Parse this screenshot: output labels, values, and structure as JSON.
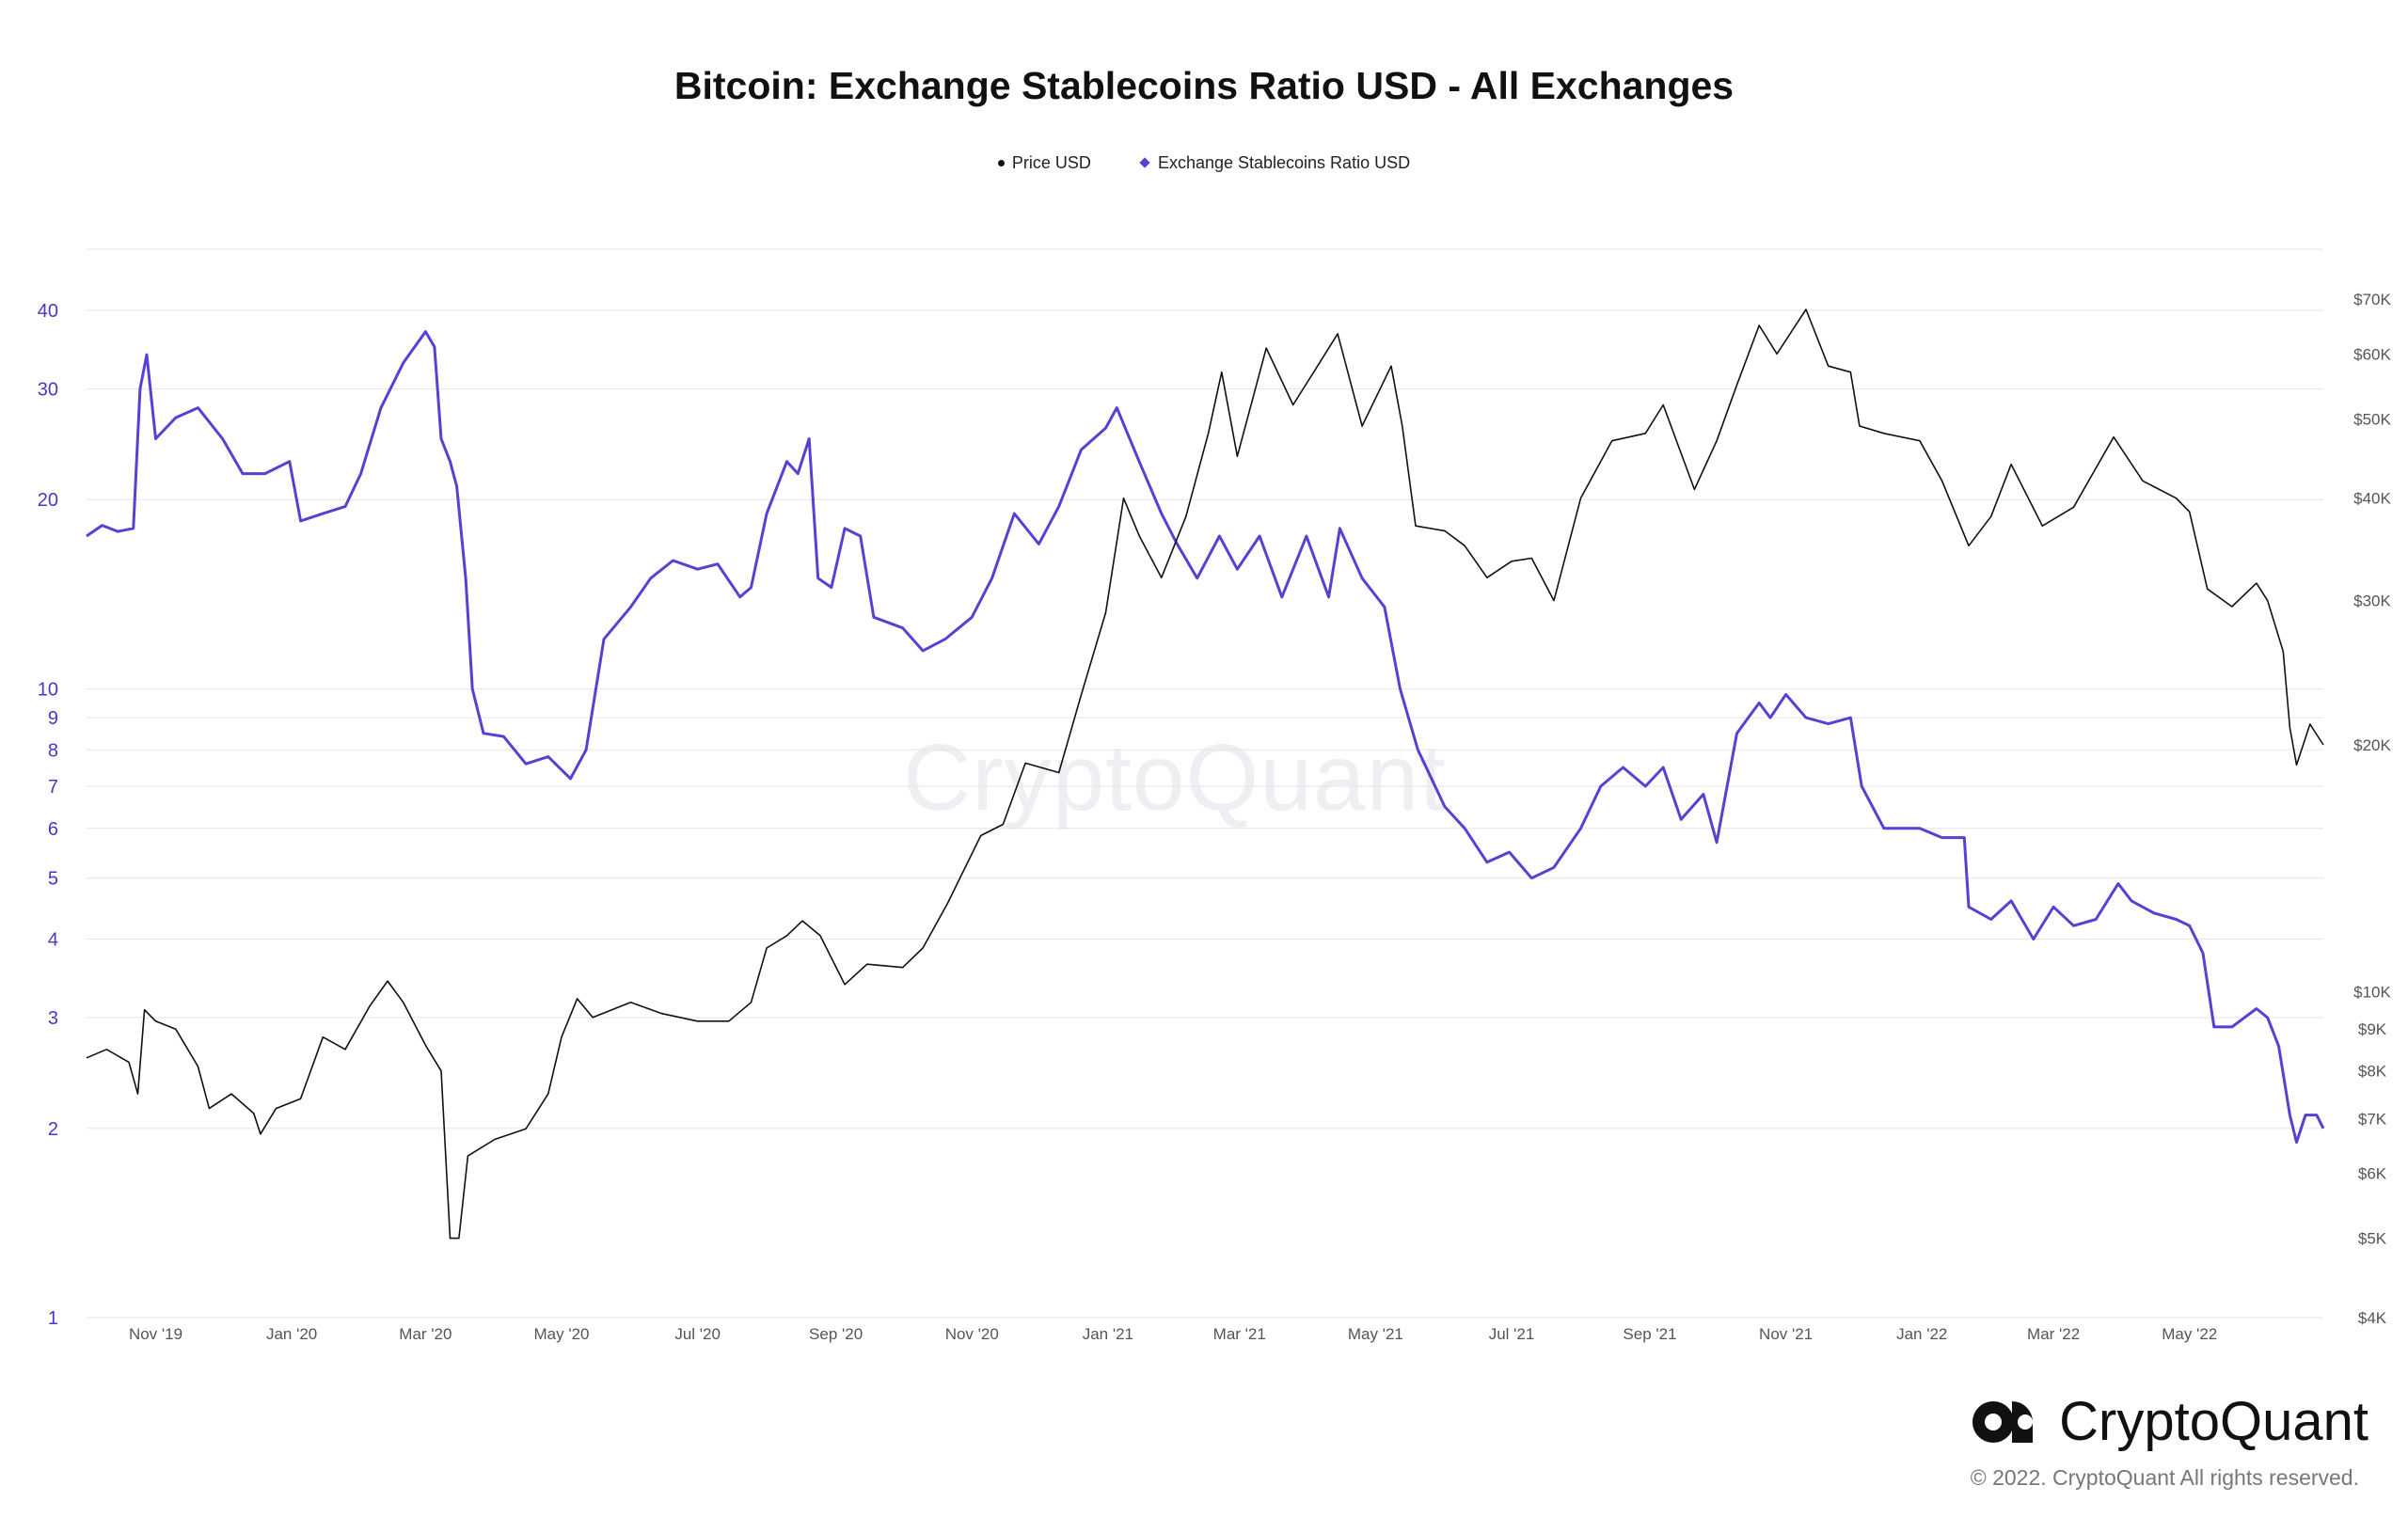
{
  "chart_data": {
    "type": "line",
    "title": "Bitcoin: Exchange Stablecoins Ratio USD - All Exchanges",
    "legend": [
      {
        "name": "Price USD",
        "color": "#111111",
        "marker": "dot"
      },
      {
        "name": "Exchange Stablecoins Ratio USD",
        "color": "#5b3fd2",
        "marker": "diamond"
      }
    ],
    "x_ticks": [
      "Nov '19",
      "Jan '20",
      "Mar '20",
      "May '20",
      "Jul '20",
      "Sep '20",
      "Nov '20",
      "Jan '21",
      "Mar '21",
      "May '21",
      "Jul '21",
      "Sep '21",
      "Nov '21",
      "Jan '22",
      "Mar '22",
      "May '22"
    ],
    "x_range": [
      "2019-10-01",
      "2022-06-30"
    ],
    "y_left": {
      "scale": "log",
      "range": [
        1,
        50
      ],
      "ticks": [
        "40",
        "30",
        "20",
        "10",
        "9",
        "8",
        "7",
        "6",
        "5",
        "4",
        "3",
        "2",
        "1"
      ],
      "tick_values": [
        40,
        30,
        20,
        10,
        9,
        8,
        7,
        6,
        5,
        4,
        3,
        2,
        1
      ]
    },
    "y_right": {
      "scale": "log",
      "range": [
        4000,
        85000
      ],
      "ticks": [
        "$70K",
        "$60K",
        "$50K",
        "$40K",
        "$30K",
        "$20K",
        "$10K",
        "$9K",
        "$8K",
        "$7K",
        "$6K",
        "$5K",
        "$4K"
      ],
      "tick_values": [
        70000,
        60000,
        50000,
        40000,
        30000,
        20000,
        10000,
        9000,
        8000,
        7000,
        6000,
        5000,
        4000
      ]
    },
    "series": [
      {
        "name": "Exchange Stablecoins Ratio USD",
        "axis": "left",
        "color": "#5b3fd2",
        "points": [
          [
            "2019-10-01",
            17.5
          ],
          [
            "2019-10-08",
            18.2
          ],
          [
            "2019-10-15",
            17.8
          ],
          [
            "2019-10-22",
            18.0
          ],
          [
            "2019-10-25",
            30.0
          ],
          [
            "2019-10-28",
            34.0
          ],
          [
            "2019-11-01",
            25.0
          ],
          [
            "2019-11-10",
            27.0
          ],
          [
            "2019-11-20",
            28.0
          ],
          [
            "2019-12-01",
            25.0
          ],
          [
            "2019-12-10",
            22.0
          ],
          [
            "2019-12-20",
            22.0
          ],
          [
            "2019-12-31",
            23.0
          ],
          [
            "2020-01-05",
            18.5
          ],
          [
            "2020-01-15",
            19.0
          ],
          [
            "2020-01-25",
            19.5
          ],
          [
            "2020-02-01",
            22.0
          ],
          [
            "2020-02-10",
            28.0
          ],
          [
            "2020-02-20",
            33.0
          ],
          [
            "2020-03-01",
            37.0
          ],
          [
            "2020-03-05",
            35.0
          ],
          [
            "2020-03-08",
            25.0
          ],
          [
            "2020-03-12",
            23.0
          ],
          [
            "2020-03-15",
            21.0
          ],
          [
            "2020-03-19",
            15.0
          ],
          [
            "2020-03-22",
            10.0
          ],
          [
            "2020-03-27",
            8.5
          ],
          [
            "2020-04-05",
            8.4
          ],
          [
            "2020-04-15",
            7.6
          ],
          [
            "2020-04-25",
            7.8
          ],
          [
            "2020-05-05",
            7.2
          ],
          [
            "2020-05-12",
            8.0
          ],
          [
            "2020-05-20",
            12.0
          ],
          [
            "2020-06-01",
            13.5
          ],
          [
            "2020-06-10",
            15.0
          ],
          [
            "2020-06-20",
            16.0
          ],
          [
            "2020-07-01",
            15.5
          ],
          [
            "2020-07-10",
            15.8
          ],
          [
            "2020-07-20",
            14.0
          ],
          [
            "2020-07-25",
            14.5
          ],
          [
            "2020-08-01",
            19.0
          ],
          [
            "2020-08-10",
            23.0
          ],
          [
            "2020-08-15",
            22.0
          ],
          [
            "2020-08-20",
            25.0
          ],
          [
            "2020-08-24",
            15.0
          ],
          [
            "2020-08-30",
            14.5
          ],
          [
            "2020-09-05",
            18.0
          ],
          [
            "2020-09-12",
            17.5
          ],
          [
            "2020-09-18",
            13.0
          ],
          [
            "2020-10-01",
            12.5
          ],
          [
            "2020-10-10",
            11.5
          ],
          [
            "2020-10-20",
            12.0
          ],
          [
            "2020-11-01",
            13.0
          ],
          [
            "2020-11-10",
            15.0
          ],
          [
            "2020-11-20",
            19.0
          ],
          [
            "2020-12-01",
            17.0
          ],
          [
            "2020-12-10",
            19.5
          ],
          [
            "2020-12-20",
            24.0
          ],
          [
            "2020-12-31",
            26.0
          ],
          [
            "2021-01-05",
            28.0
          ],
          [
            "2021-01-15",
            23.0
          ],
          [
            "2021-01-25",
            19.0
          ],
          [
            "2021-02-01",
            17.0
          ],
          [
            "2021-02-10",
            15.0
          ],
          [
            "2021-02-20",
            17.5
          ],
          [
            "2021-02-28",
            15.5
          ],
          [
            "2021-03-10",
            17.5
          ],
          [
            "2021-03-20",
            14.0
          ],
          [
            "2021-03-31",
            17.5
          ],
          [
            "2021-04-10",
            14.0
          ],
          [
            "2021-04-15",
            18.0
          ],
          [
            "2021-04-25",
            15.0
          ],
          [
            "2021-05-05",
            13.5
          ],
          [
            "2021-05-12",
            10.0
          ],
          [
            "2021-05-20",
            8.0
          ],
          [
            "2021-06-01",
            6.5
          ],
          [
            "2021-06-10",
            6.0
          ],
          [
            "2021-06-20",
            5.3
          ],
          [
            "2021-06-30",
            5.5
          ],
          [
            "2021-07-10",
            5.0
          ],
          [
            "2021-07-20",
            5.2
          ],
          [
            "2021-08-01",
            6.0
          ],
          [
            "2021-08-10",
            7.0
          ],
          [
            "2021-08-20",
            7.5
          ],
          [
            "2021-08-30",
            7.0
          ],
          [
            "2021-09-07",
            7.5
          ],
          [
            "2021-09-15",
            6.2
          ],
          [
            "2021-09-25",
            6.8
          ],
          [
            "2021-10-01",
            5.7
          ],
          [
            "2021-10-10",
            8.5
          ],
          [
            "2021-10-20",
            9.5
          ],
          [
            "2021-10-25",
            9.0
          ],
          [
            "2021-11-01",
            9.8
          ],
          [
            "2021-11-10",
            9.0
          ],
          [
            "2021-11-20",
            8.8
          ],
          [
            "2021-11-30",
            9.0
          ],
          [
            "2021-12-05",
            7.0
          ],
          [
            "2021-12-15",
            6.0
          ],
          [
            "2021-12-31",
            6.0
          ],
          [
            "2022-01-10",
            5.8
          ],
          [
            "2022-01-20",
            5.8
          ],
          [
            "2022-01-22",
            4.5
          ],
          [
            "2022-02-01",
            4.3
          ],
          [
            "2022-02-10",
            4.6
          ],
          [
            "2022-02-20",
            4.0
          ],
          [
            "2022-03-01",
            4.5
          ],
          [
            "2022-03-10",
            4.2
          ],
          [
            "2022-03-20",
            4.3
          ],
          [
            "2022-03-30",
            4.9
          ],
          [
            "2022-04-05",
            4.6
          ],
          [
            "2022-04-15",
            4.4
          ],
          [
            "2022-04-25",
            4.3
          ],
          [
            "2022-05-01",
            4.2
          ],
          [
            "2022-05-07",
            3.8
          ],
          [
            "2022-05-12",
            2.9
          ],
          [
            "2022-05-20",
            2.9
          ],
          [
            "2022-05-31",
            3.1
          ],
          [
            "2022-06-05",
            3.0
          ],
          [
            "2022-06-10",
            2.7
          ],
          [
            "2022-06-15",
            2.1
          ],
          [
            "2022-06-18",
            1.9
          ],
          [
            "2022-06-22",
            2.1
          ],
          [
            "2022-06-27",
            2.1
          ],
          [
            "2022-06-30",
            2.0
          ]
        ]
      },
      {
        "name": "Price USD",
        "axis": "right",
        "color": "#111111",
        "points": [
          [
            "2019-10-01",
            8300
          ],
          [
            "2019-10-10",
            8500
          ],
          [
            "2019-10-20",
            8200
          ],
          [
            "2019-10-24",
            7500
          ],
          [
            "2019-10-27",
            9500
          ],
          [
            "2019-11-01",
            9200
          ],
          [
            "2019-11-10",
            9000
          ],
          [
            "2019-11-20",
            8100
          ],
          [
            "2019-11-25",
            7200
          ],
          [
            "2019-12-05",
            7500
          ],
          [
            "2019-12-15",
            7100
          ],
          [
            "2019-12-18",
            6700
          ],
          [
            "2019-12-25",
            7200
          ],
          [
            "2020-01-05",
            7400
          ],
          [
            "2020-01-15",
            8800
          ],
          [
            "2020-01-25",
            8500
          ],
          [
            "2020-02-05",
            9600
          ],
          [
            "2020-02-13",
            10300
          ],
          [
            "2020-02-20",
            9700
          ],
          [
            "2020-03-01",
            8600
          ],
          [
            "2020-03-08",
            8000
          ],
          [
            "2020-03-12",
            5000
          ],
          [
            "2020-03-16",
            5000
          ],
          [
            "2020-03-20",
            6300
          ],
          [
            "2020-04-01",
            6600
          ],
          [
            "2020-04-15",
            6800
          ],
          [
            "2020-04-25",
            7500
          ],
          [
            "2020-05-01",
            8800
          ],
          [
            "2020-05-08",
            9800
          ],
          [
            "2020-05-15",
            9300
          ],
          [
            "2020-06-01",
            9700
          ],
          [
            "2020-06-15",
            9400
          ],
          [
            "2020-07-01",
            9200
          ],
          [
            "2020-07-15",
            9200
          ],
          [
            "2020-07-25",
            9700
          ],
          [
            "2020-08-01",
            11300
          ],
          [
            "2020-08-10",
            11700
          ],
          [
            "2020-08-17",
            12200
          ],
          [
            "2020-08-25",
            11700
          ],
          [
            "2020-09-05",
            10200
          ],
          [
            "2020-09-15",
            10800
          ],
          [
            "2020-10-01",
            10700
          ],
          [
            "2020-10-10",
            11300
          ],
          [
            "2020-10-21",
            12800
          ],
          [
            "2020-11-05",
            15500
          ],
          [
            "2020-11-15",
            16000
          ],
          [
            "2020-11-25",
            19000
          ],
          [
            "2020-12-10",
            18500
          ],
          [
            "2020-12-20",
            23000
          ],
          [
            "2020-12-31",
            29000
          ],
          [
            "2021-01-08",
            40000
          ],
          [
            "2021-01-15",
            36000
          ],
          [
            "2021-01-25",
            32000
          ],
          [
            "2021-02-05",
            38000
          ],
          [
            "2021-02-15",
            48000
          ],
          [
            "2021-02-21",
            57000
          ],
          [
            "2021-02-28",
            45000
          ],
          [
            "2021-03-13",
            61000
          ],
          [
            "2021-03-25",
            52000
          ],
          [
            "2021-04-05",
            58000
          ],
          [
            "2021-04-14",
            63500
          ],
          [
            "2021-04-25",
            49000
          ],
          [
            "2021-05-08",
            58000
          ],
          [
            "2021-05-13",
            49000
          ],
          [
            "2021-05-19",
            37000
          ],
          [
            "2021-06-01",
            36500
          ],
          [
            "2021-06-10",
            35000
          ],
          [
            "2021-06-20",
            32000
          ],
          [
            "2021-07-01",
            33500
          ],
          [
            "2021-07-10",
            33800
          ],
          [
            "2021-07-20",
            30000
          ],
          [
            "2021-08-01",
            40000
          ],
          [
            "2021-08-15",
            47000
          ],
          [
            "2021-08-30",
            48000
          ],
          [
            "2021-09-07",
            52000
          ],
          [
            "2021-09-21",
            41000
          ],
          [
            "2021-10-01",
            47000
          ],
          [
            "2021-10-10",
            55000
          ],
          [
            "2021-10-20",
            65000
          ],
          [
            "2021-10-28",
            60000
          ],
          [
            "2021-11-10",
            68000
          ],
          [
            "2021-11-20",
            58000
          ],
          [
            "2021-11-30",
            57000
          ],
          [
            "2021-12-04",
            49000
          ],
          [
            "2021-12-15",
            48000
          ],
          [
            "2021-12-31",
            47000
          ],
          [
            "2022-01-10",
            42000
          ],
          [
            "2022-01-22",
            35000
          ],
          [
            "2022-02-01",
            38000
          ],
          [
            "2022-02-10",
            44000
          ],
          [
            "2022-02-24",
            37000
          ],
          [
            "2022-03-10",
            39000
          ],
          [
            "2022-03-28",
            47500
          ],
          [
            "2022-04-10",
            42000
          ],
          [
            "2022-04-25",
            40000
          ],
          [
            "2022-05-01",
            38500
          ],
          [
            "2022-05-09",
            31000
          ],
          [
            "2022-05-20",
            29500
          ],
          [
            "2022-05-31",
            31500
          ],
          [
            "2022-06-05",
            30000
          ],
          [
            "2022-06-12",
            26000
          ],
          [
            "2022-06-15",
            21000
          ],
          [
            "2022-06-18",
            18900
          ],
          [
            "2022-06-24",
            21200
          ],
          [
            "2022-06-30",
            20000
          ]
        ]
      }
    ]
  },
  "watermark": "CryptoQuant",
  "brand": {
    "name": "CryptoQuant",
    "copyright": "© 2022. CryptoQuant All rights reserved."
  }
}
